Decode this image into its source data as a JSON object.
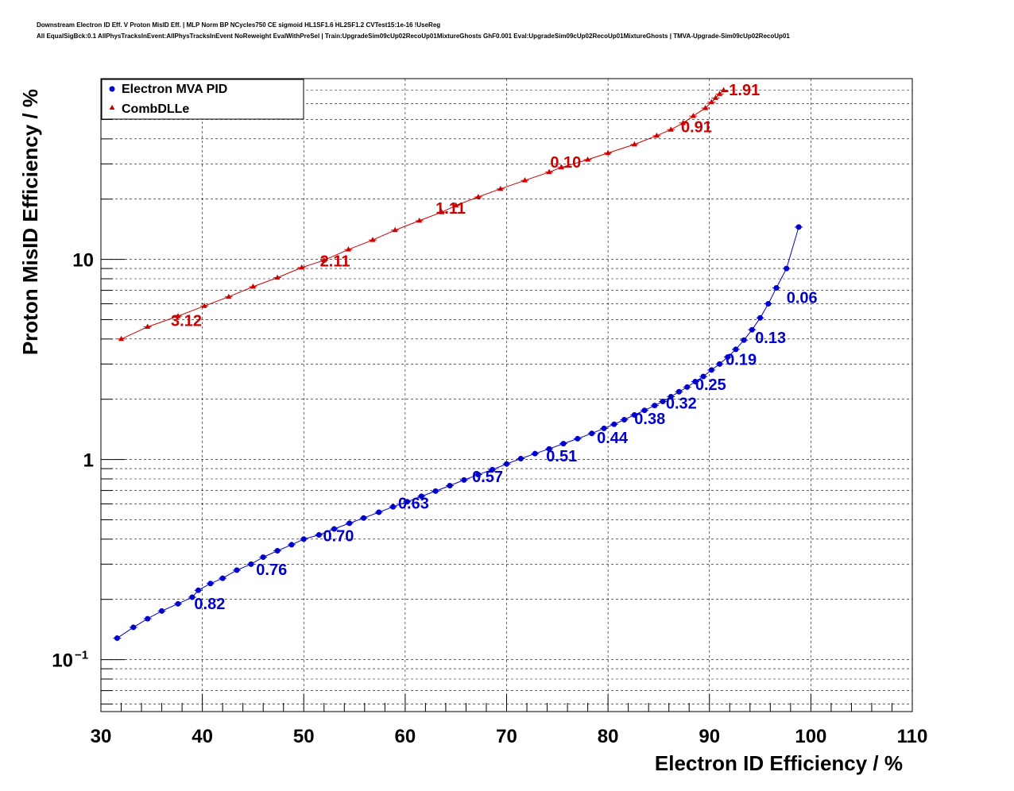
{
  "header": {
    "title_line1": "Downstream Electron ID Eff. V Proton MisID Eff. | MLP Norm BP NCycles750 CE sigmoid HL1SF1.6 HL2SF1.2 CVTest15:1e-16 !UseReg",
    "title_line2": "All EqualSigBck:0.1 AllPhysTracksInEvent:AllPhysTracksInEvent NoReweight EvalWithPreSel | Train:UpgradeSim09cUp02RecoUp01MixtureGhosts GhF0.001 Eval:UpgradeSim09cUp02RecoUp01MixtureGhosts | TMVA-Upgrade-Sim09cUp02RecoUp01"
  },
  "chart_data": {
    "type": "scatter",
    "xlabel": "Electron ID Efficiency / %",
    "ylabel": "Proton MisID Efficiency / %",
    "xlim": [
      30,
      110
    ],
    "ylim": [
      0.055,
      80
    ],
    "yscale": "log",
    "grid": true,
    "legend_position": "top-left",
    "x_ticks": [
      30,
      40,
      50,
      60,
      70,
      80,
      90,
      100,
      110
    ],
    "x_tick_labels": [
      "30",
      "40",
      "50",
      "60",
      "70",
      "80",
      "90",
      "100",
      "110"
    ],
    "y_ticks": [
      {
        "value": 0.1,
        "base": "10",
        "exp": "−1"
      },
      {
        "value": 1,
        "base": "1",
        "exp": ""
      },
      {
        "value": 10,
        "base": "10",
        "exp": ""
      }
    ],
    "series": [
      {
        "name": "Electron MVA PID",
        "color": "#0000cc",
        "marker": "circle",
        "x": [
          31.6,
          33.2,
          34.6,
          36.0,
          37.6,
          39.0,
          39.6,
          40.8,
          42.0,
          43.4,
          44.8,
          46.0,
          47.4,
          48.8,
          50.0,
          51.5,
          53.0,
          54.5,
          55.9,
          57.4,
          58.8,
          60.2,
          61.6,
          63.0,
          64.4,
          65.8,
          67.2,
          68.6,
          70.0,
          71.4,
          72.8,
          74.2,
          75.6,
          77.0,
          78.4,
          79.6,
          80.6,
          81.6,
          82.6,
          83.6,
          84.6,
          85.4,
          86.2,
          87.0,
          87.8,
          88.6,
          89.4,
          90.2,
          91.0,
          91.8,
          92.6,
          93.4,
          94.2,
          95.0,
          95.8,
          96.6,
          97.6,
          98.8
        ],
        "y": [
          0.128,
          0.145,
          0.16,
          0.175,
          0.19,
          0.205,
          0.222,
          0.24,
          0.255,
          0.28,
          0.3,
          0.325,
          0.35,
          0.375,
          0.4,
          0.42,
          0.45,
          0.48,
          0.51,
          0.545,
          0.58,
          0.615,
          0.655,
          0.695,
          0.74,
          0.79,
          0.84,
          0.89,
          0.95,
          1.01,
          1.07,
          1.13,
          1.2,
          1.27,
          1.35,
          1.43,
          1.5,
          1.58,
          1.67,
          1.76,
          1.86,
          1.95,
          2.06,
          2.18,
          2.3,
          2.45,
          2.6,
          2.8,
          3.0,
          3.25,
          3.55,
          3.95,
          4.45,
          5.1,
          6.0,
          7.2,
          9.0,
          14.5
        ]
      },
      {
        "name": "CombDLLe",
        "color": "#cc0000",
        "marker": "triangle",
        "x": [
          32.0,
          34.6,
          37.6,
          40.2,
          42.6,
          45.0,
          47.4,
          49.8,
          52.0,
          54.4,
          56.8,
          59.0,
          61.4,
          63.6,
          65.0,
          67.2,
          69.4,
          71.8,
          74.2,
          75.4,
          78.0,
          80.0,
          82.6,
          84.8,
          86.2,
          87.4,
          88.4,
          89.6,
          90.2,
          90.6,
          91.0,
          91.4
        ],
        "y": [
          4.0,
          4.6,
          5.2,
          5.85,
          6.5,
          7.3,
          8.1,
          9.1,
          9.9,
          11.2,
          12.5,
          14.0,
          15.6,
          17.2,
          18.6,
          20.5,
          22.5,
          24.8,
          27.3,
          28.8,
          31.5,
          34.0,
          37.5,
          41.5,
          44.5,
          48.0,
          52.0,
          57.0,
          61.0,
          64.0,
          67.0,
          70.0
        ]
      }
    ],
    "annotations": [
      {
        "text": "0.82",
        "x": 39.2,
        "y": 0.192,
        "series": 0
      },
      {
        "text": "0.76",
        "x": 45.3,
        "y": 0.285,
        "series": 0
      },
      {
        "text": "0.70",
        "x": 51.9,
        "y": 0.42,
        "series": 0
      },
      {
        "text": "0.63",
        "x": 59.3,
        "y": 0.61,
        "series": 0
      },
      {
        "text": "0.57",
        "x": 66.6,
        "y": 0.83,
        "series": 0
      },
      {
        "text": "0.51",
        "x": 73.9,
        "y": 1.05,
        "series": 0
      },
      {
        "text": "0.44",
        "x": 78.9,
        "y": 1.3,
        "series": 0
      },
      {
        "text": "0.38",
        "x": 82.6,
        "y": 1.62,
        "series": 0
      },
      {
        "text": "0.32",
        "x": 85.7,
        "y": 1.93,
        "series": 0
      },
      {
        "text": "0.25",
        "x": 88.6,
        "y": 2.4,
        "series": 0
      },
      {
        "text": "0.19",
        "x": 91.6,
        "y": 3.2,
        "series": 0
      },
      {
        "text": "0.13",
        "x": 94.5,
        "y": 4.1,
        "series": 0
      },
      {
        "text": "0.06",
        "x": 97.6,
        "y": 6.5,
        "series": 0
      },
      {
        "text": "3.12",
        "x": 36.9,
        "y": 5.0,
        "series": 1
      },
      {
        "text": "2.11",
        "x": 51.6,
        "y": 9.9,
        "series": 1
      },
      {
        "text": "1.11",
        "x": 63.0,
        "y": 18.2,
        "series": 1
      },
      {
        "text": "0.10",
        "x": 74.3,
        "y": 31.0,
        "series": 1
      },
      {
        "text": "0.91",
        "x": 87.2,
        "y": 46.5,
        "series": 1
      },
      {
        "text": "-1.91",
        "x": 91.4,
        "y": 71.0,
        "series": 1
      }
    ]
  }
}
